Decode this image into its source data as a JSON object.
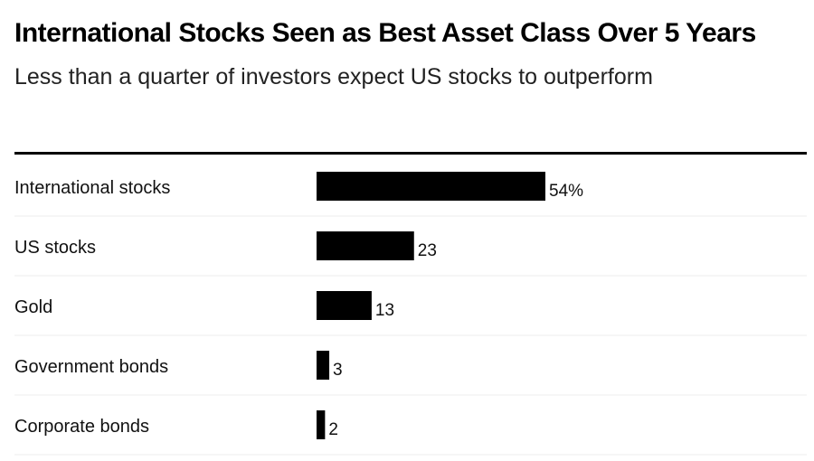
{
  "chart_data": {
    "type": "bar",
    "orientation": "horizontal",
    "title": "International Stocks Seen as Best Asset Class Over 5 Years",
    "subtitle": "Less than a quarter of investors expect US stocks to outperform",
    "categories": [
      "International stocks",
      "US stocks",
      "Gold",
      "Government bonds",
      "Corporate bonds"
    ],
    "values": [
      54,
      23,
      13,
      3,
      2
    ],
    "value_labels": [
      "54%",
      "23",
      "13",
      "3",
      "2"
    ],
    "unit": "%",
    "xlim": [
      0,
      100
    ],
    "grid": false,
    "legend": "none",
    "bar_color": "#000000",
    "row_divider_color": "#eeeeee"
  }
}
